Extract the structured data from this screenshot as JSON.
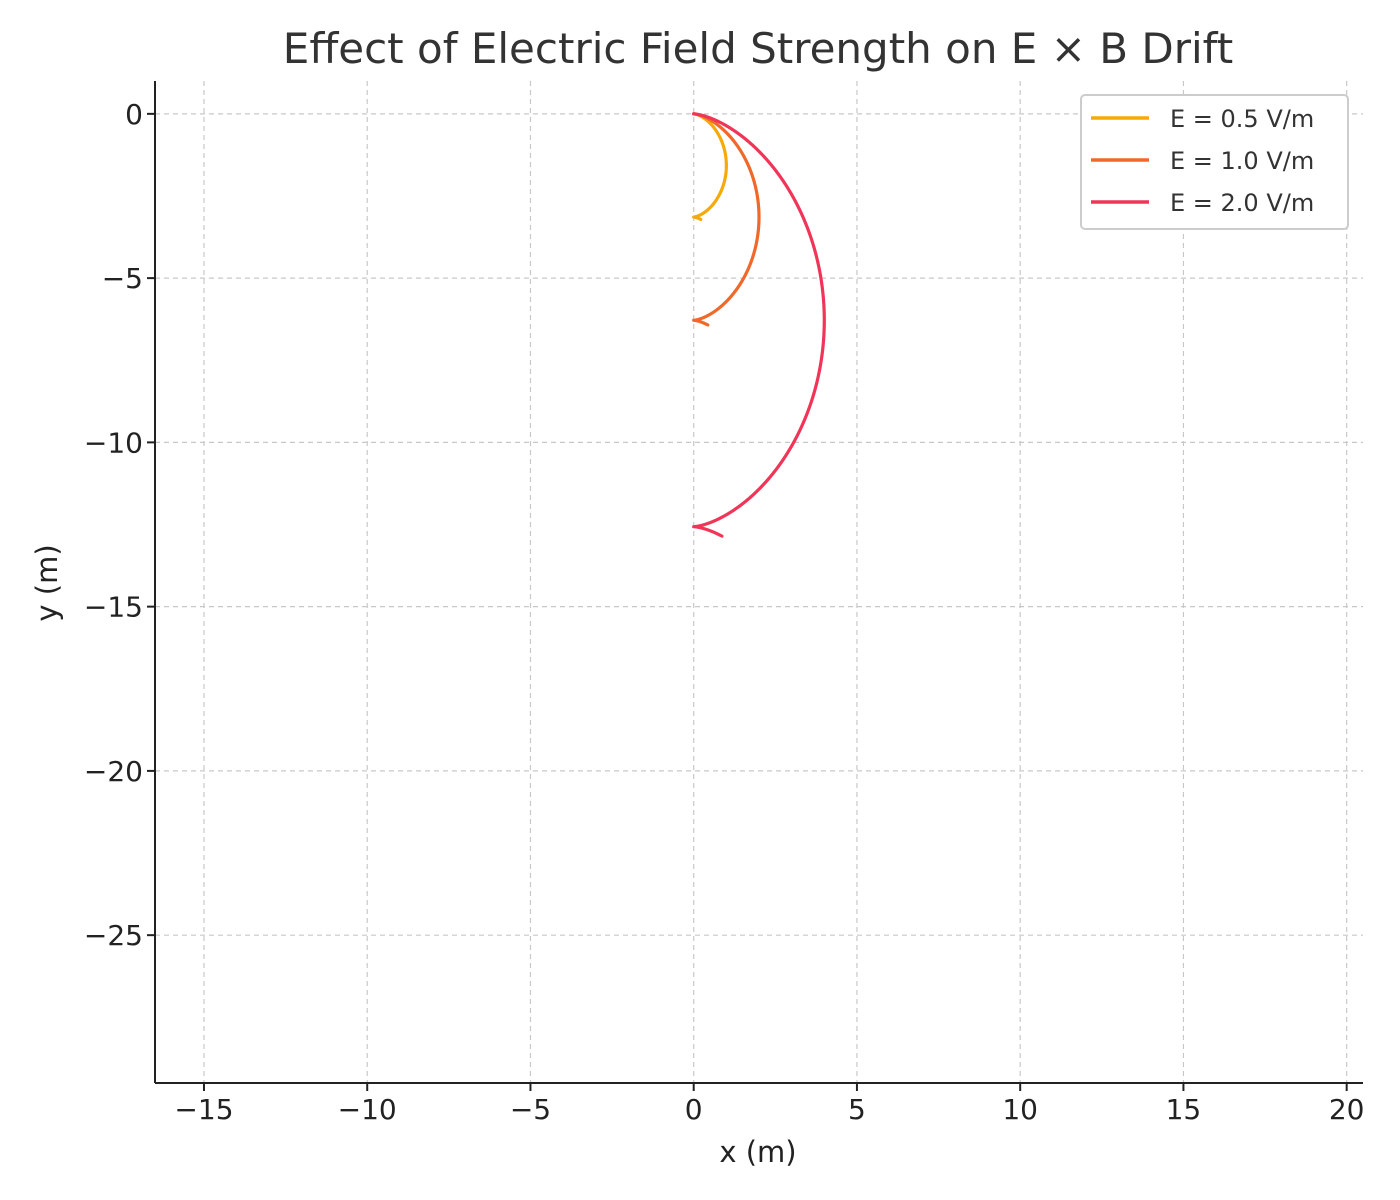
{
  "chart_data": {
    "type": "line",
    "title": "Effect of Electric Field Strength on E × B Drift",
    "xlabel": "x (m)",
    "ylabel": "y (m)",
    "xlim": [
      -16.5,
      20.5
    ],
    "ylim": [
      -29.5,
      1.0
    ],
    "xticks": [
      -15,
      -10,
      -5,
      0,
      5,
      10,
      15,
      20
    ],
    "yticks": [
      0,
      -5,
      -10,
      -15,
      -20,
      -25
    ],
    "xtick_labels": [
      "−15",
      "−10",
      "−5",
      "0",
      "5",
      "10",
      "15",
      "20"
    ],
    "ytick_labels": [
      "0",
      "−5",
      "−10",
      "−15",
      "−20",
      "−25"
    ],
    "grid": true,
    "legend_position": "top-right",
    "series": [
      {
        "name": "E = 0.5 V/m",
        "color": "#f5aa0a",
        "radius": 0.5,
        "t_end": 7.25
      },
      {
        "name": "E = 1.0 V/m",
        "color": "#f0682a",
        "radius": 1.0,
        "t_end": 7.25
      },
      {
        "name": "E = 2.0 V/m",
        "color": "#f03558",
        "radius": 2.0,
        "t_end": 7.25
      }
    ]
  }
}
